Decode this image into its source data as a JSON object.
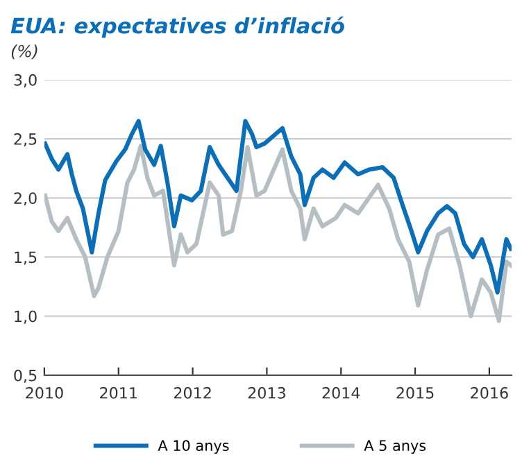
{
  "chart_data": {
    "type": "line",
    "title": "EUA: expectatives d’inflació",
    "ylabel": "(%)",
    "series": [
      {
        "name": "A 10 anys",
        "color": "#0a6fb8",
        "x": [
          2010.01,
          2010.1,
          2010.19,
          2010.31,
          2010.37,
          2010.43,
          2010.52,
          2010.64,
          2010.73,
          2010.82,
          2010.97,
          2011.09,
          2011.18,
          2011.27,
          2011.36,
          2011.48,
          2011.57,
          2011.66,
          2011.75,
          2011.84,
          2011.99,
          2012.11,
          2012.23,
          2012.35,
          2012.47,
          2012.59,
          2012.71,
          2012.8,
          2012.86,
          2012.97,
          2013.21,
          2013.33,
          2013.45,
          2013.51,
          2013.63,
          2013.75,
          2013.9,
          2014.05,
          2014.23,
          2014.38,
          2014.56,
          2014.71,
          2014.83,
          2014.95,
          2015.04,
          2015.16,
          2015.31,
          2015.43,
          2015.54,
          2015.66,
          2015.78,
          2015.9,
          2016.02,
          2016.11,
          2016.23,
          2016.29
        ],
        "values": [
          2.46,
          2.33,
          2.24,
          2.37,
          2.2,
          2.06,
          1.91,
          1.54,
          1.87,
          2.15,
          2.31,
          2.41,
          2.54,
          2.65,
          2.41,
          2.28,
          2.44,
          2.13,
          1.76,
          2.02,
          1.98,
          2.06,
          2.43,
          2.28,
          2.17,
          2.06,
          2.65,
          2.54,
          2.43,
          2.46,
          2.59,
          2.35,
          2.2,
          1.94,
          2.17,
          2.24,
          2.17,
          2.3,
          2.2,
          2.24,
          2.26,
          2.17,
          1.94,
          1.72,
          1.54,
          1.72,
          1.87,
          1.93,
          1.87,
          1.61,
          1.5,
          1.65,
          1.43,
          1.2,
          1.65,
          1.57
        ]
      },
      {
        "name": "A 5 anys",
        "color": "#b4bec3",
        "x": [
          2010.01,
          2010.1,
          2010.19,
          2010.31,
          2010.43,
          2010.55,
          2010.67,
          2010.73,
          2010.85,
          2011.0,
          2011.12,
          2011.21,
          2011.3,
          2011.39,
          2011.48,
          2011.6,
          2011.75,
          2011.84,
          2011.93,
          2012.05,
          2012.23,
          2012.35,
          2012.41,
          2012.53,
          2012.65,
          2012.74,
          2012.86,
          2012.97,
          2013.21,
          2013.33,
          2013.45,
          2013.51,
          2013.63,
          2013.75,
          2013.93,
          2014.05,
          2014.23,
          2014.5,
          2014.65,
          2014.77,
          2014.92,
          2015.04,
          2015.16,
          2015.31,
          2015.46,
          2015.6,
          2015.75,
          2015.9,
          2016.02,
          2016.13,
          2016.23,
          2016.29
        ],
        "values": [
          2.02,
          1.8,
          1.72,
          1.83,
          1.65,
          1.5,
          1.17,
          1.24,
          1.5,
          1.72,
          2.13,
          2.24,
          2.44,
          2.17,
          2.02,
          2.06,
          1.43,
          1.69,
          1.54,
          1.61,
          2.13,
          2.02,
          1.69,
          1.72,
          2.06,
          2.43,
          2.02,
          2.06,
          2.41,
          2.06,
          1.91,
          1.65,
          1.91,
          1.76,
          1.83,
          1.94,
          1.87,
          2.11,
          1.91,
          1.65,
          1.46,
          1.09,
          1.39,
          1.69,
          1.74,
          1.43,
          1.0,
          1.31,
          1.2,
          0.96,
          1.46,
          1.43
        ]
      }
    ],
    "xlim": [
      2010,
      2016.3
    ],
    "xticks": [
      2010,
      2011,
      2012,
      2013,
      2014,
      2015,
      2016
    ],
    "ylim": [
      0.5,
      3.0
    ],
    "yticks": [
      {
        "value": 0.5,
        "label": "0,5"
      },
      {
        "value": 1.0,
        "label": "1,0"
      },
      {
        "value": 1.5,
        "label": "1,5"
      },
      {
        "value": 2.0,
        "label": "2,0"
      },
      {
        "value": 2.5,
        "label": "2,5"
      },
      {
        "value": 3.0,
        "label": "3,0"
      }
    ],
    "grid": "y",
    "legend": "bottom",
    "marker": "none",
    "line_style": "solid"
  }
}
